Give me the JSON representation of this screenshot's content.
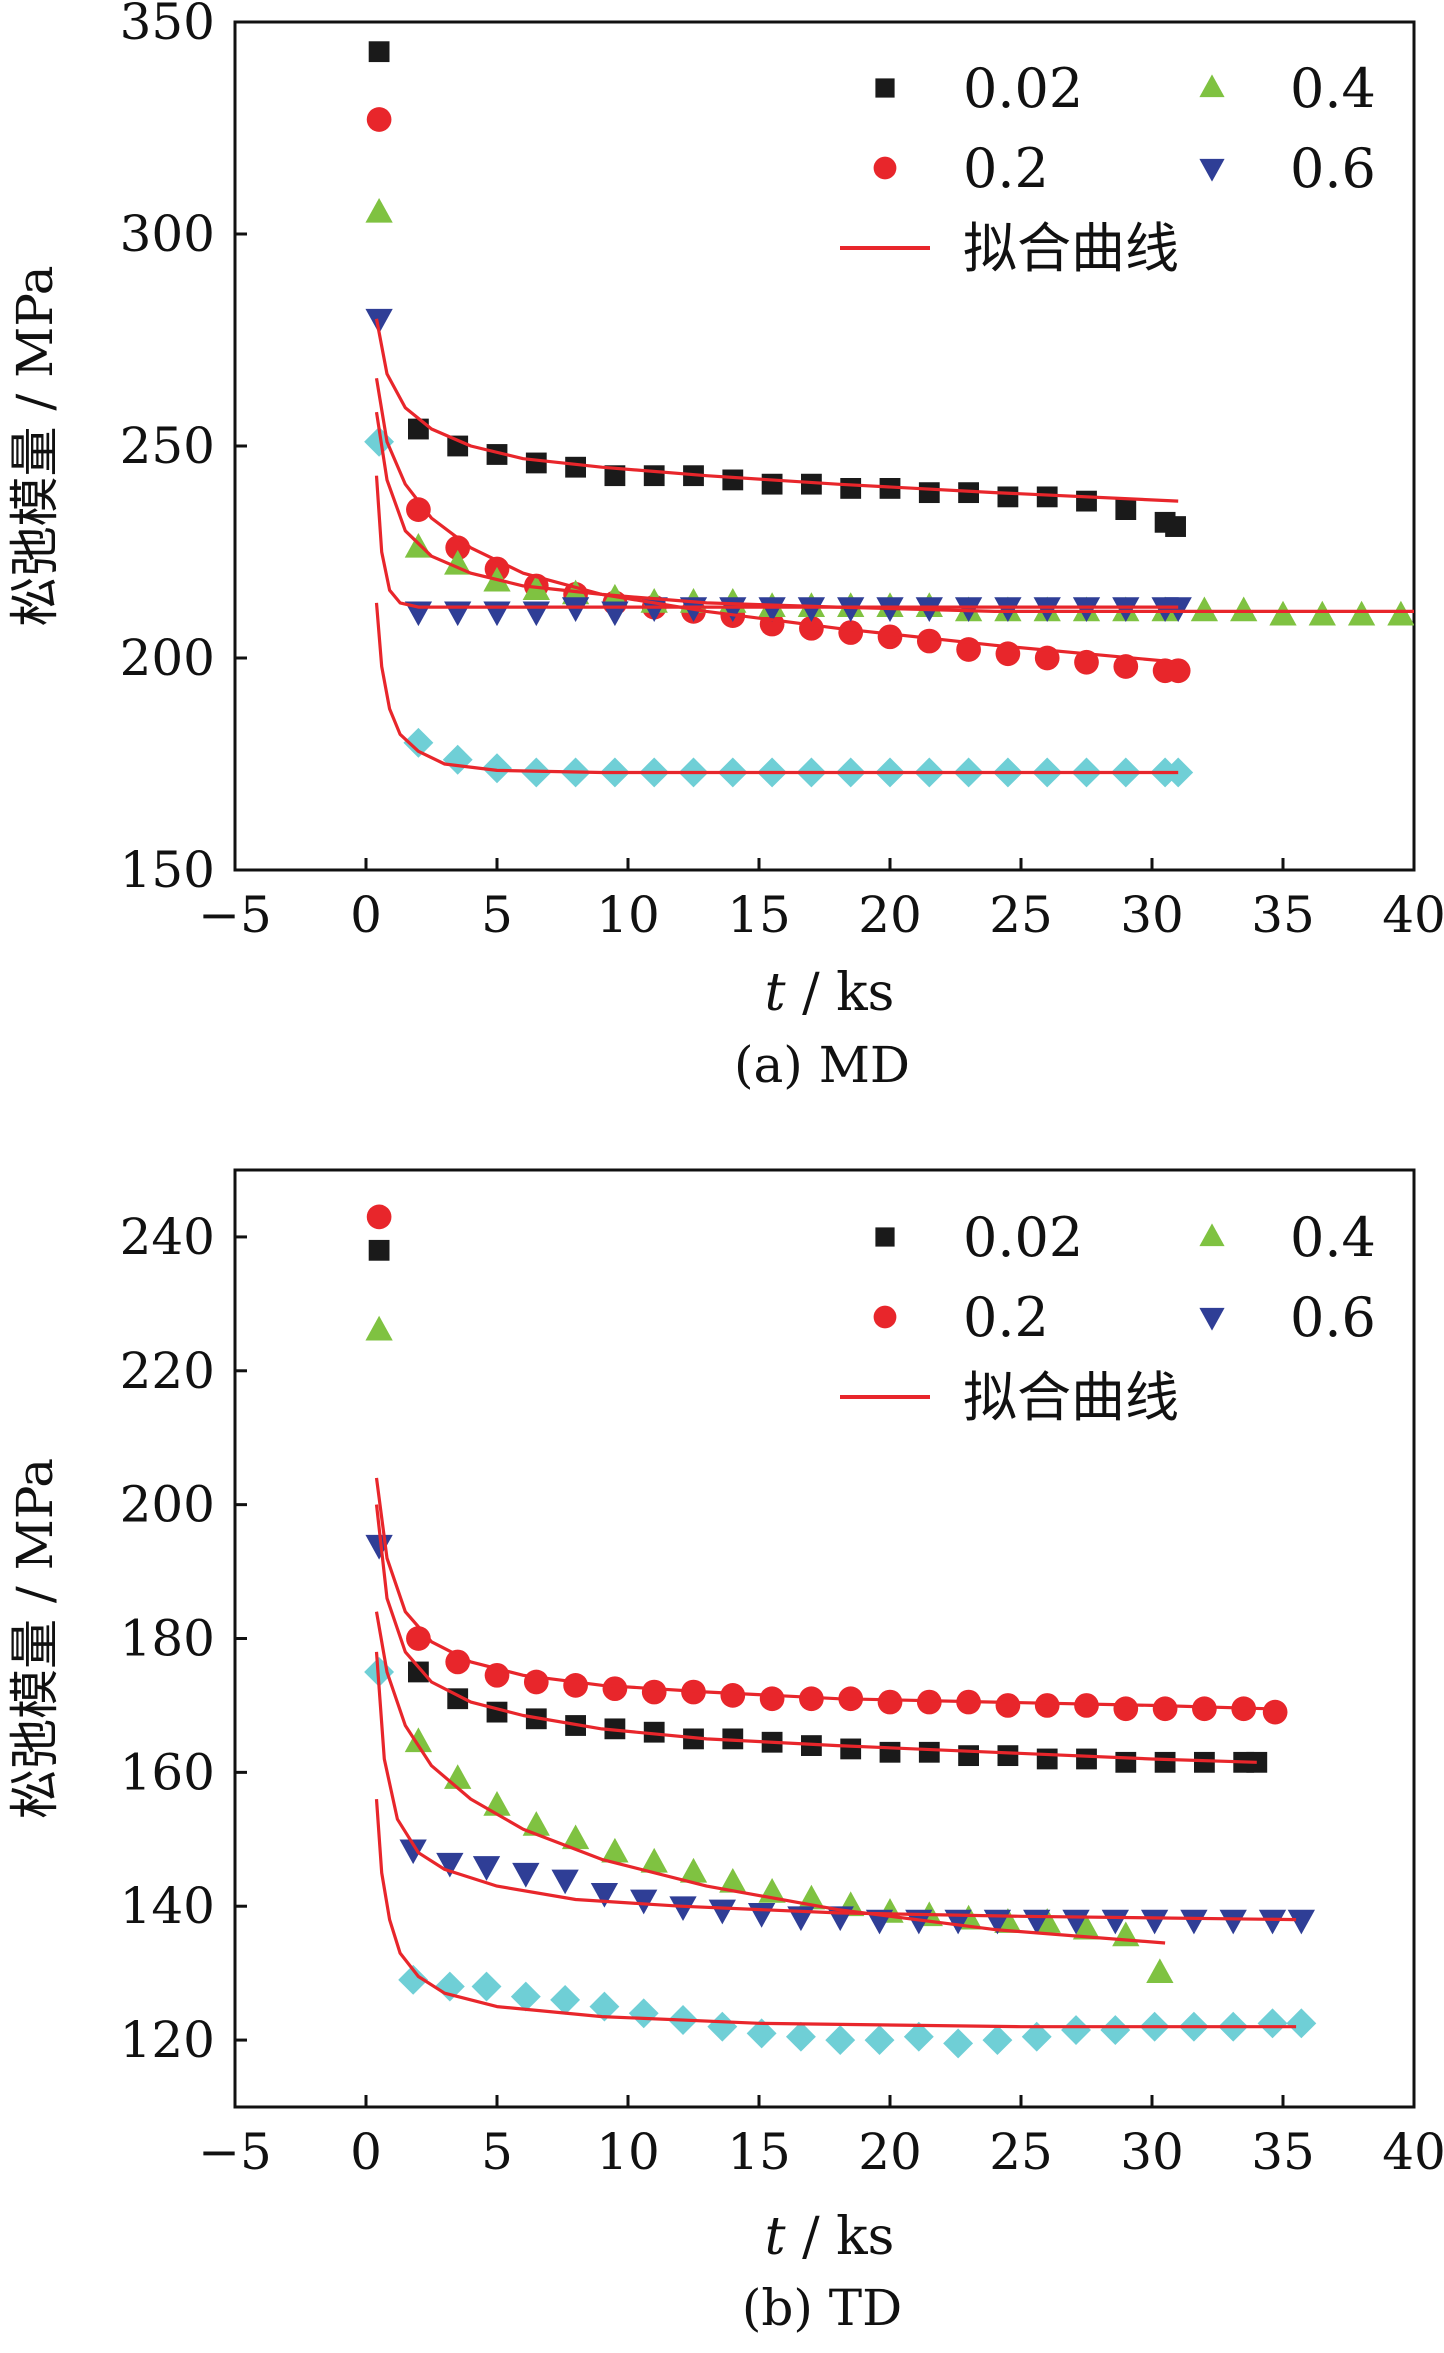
{
  "chart_data": [
    {
      "type": "scatter",
      "panel": "MD",
      "caption": "(a)  MD",
      "xlabel_italic": "t",
      "xlabel_rest": " / ks",
      "ylabel": "松弛模量 / MPa",
      "xlim": [
        -5,
        40
      ],
      "ylim": [
        150,
        350
      ],
      "xticks": [
        -5,
        0,
        5,
        10,
        15,
        20,
        25,
        30,
        35,
        40
      ],
      "xtick_labels": [
        "−5",
        "0",
        "5",
        "10",
        "15",
        "20",
        "25",
        "30",
        "35",
        "40"
      ],
      "yticks": [
        150,
        200,
        250,
        300,
        350
      ],
      "ytick_labels": [
        "150",
        "200",
        "250",
        "300",
        "350"
      ],
      "legend": [
        {
          "label": "0.02",
          "marker": "square",
          "color": "#1a1a1a"
        },
        {
          "label": "0.4",
          "marker": "triangle-up",
          "color": "#7fc241"
        },
        {
          "label": "0.2",
          "marker": "circle",
          "color": "#e8262b"
        },
        {
          "label": "0.6",
          "marker": "triangle-down",
          "color": "#2f3e96"
        },
        {
          "label": "拟合曲线",
          "marker": "line",
          "color": "#e8262b"
        }
      ],
      "series": [
        {
          "name": "0.02",
          "marker": "square",
          "color": "#1a1a1a",
          "x": [
            0.5,
            2.0,
            3.5,
            5.0,
            6.5,
            8.0,
            9.5,
            11.0,
            12.5,
            14.0,
            15.5,
            17.0,
            18.5,
            20.0,
            21.5,
            23.0,
            24.5,
            26.0,
            27.5,
            29.0,
            30.5,
            30.9
          ],
          "y": [
            343,
            254,
            250,
            248,
            246,
            245,
            243,
            243,
            243,
            242,
            241,
            241,
            240,
            240,
            239,
            239,
            238,
            238,
            237,
            235,
            232,
            231
          ]
        },
        {
          "name": "0.2",
          "marker": "circle",
          "color": "#e8262b",
          "x": [
            0.5,
            2.0,
            3.5,
            5.0,
            6.5,
            8.0,
            9.5,
            11.0,
            12.5,
            14.0,
            15.5,
            17.0,
            18.5,
            20.0,
            21.5,
            23.0,
            24.5,
            26.0,
            27.5,
            29.0,
            30.5,
            31.0
          ],
          "y": [
            327,
            235,
            226,
            221,
            217,
            215,
            213,
            212,
            211,
            210,
            208,
            207,
            206,
            205,
            204,
            202,
            201,
            200,
            199,
            198,
            197,
            197
          ]
        },
        {
          "name": "0.4",
          "marker": "triangle-up",
          "color": "#7fc241",
          "x": [
            0.5,
            2.0,
            3.5,
            5.0,
            6.5,
            8.0,
            9.5,
            11.0,
            12.5,
            14.0,
            15.5,
            17.0,
            18.5,
            20.0,
            21.5,
            23.0,
            24.5,
            26.0,
            27.5,
            29.0,
            30.5,
            32.0,
            33.5,
            35.0,
            36.5,
            38.0,
            39.5
          ],
          "y": [
            305,
            226,
            222,
            218,
            216,
            215,
            214,
            213,
            213,
            213,
            212,
            212,
            212,
            212,
            212,
            211,
            211,
            211,
            211,
            211,
            211,
            211,
            211,
            210,
            210,
            210,
            210
          ]
        },
        {
          "name": "0.6",
          "marker": "triangle-down",
          "color": "#2f3e96",
          "x": [
            0.5,
            2.0,
            3.5,
            5.0,
            6.5,
            8.0,
            9.5,
            11.0,
            12.5,
            14.0,
            15.5,
            17.0,
            18.5,
            20.0,
            21.5,
            23.0,
            24.5,
            26.0,
            27.5,
            29.0,
            30.5,
            31.0
          ],
          "y": [
            280,
            211,
            211,
            211,
            211,
            212,
            211,
            212,
            212,
            212,
            212,
            212,
            212,
            212,
            212,
            212,
            212,
            212,
            212,
            212,
            212,
            212
          ]
        },
        {
          "name": "",
          "marker": "diamond",
          "color": "#6fcfd6",
          "x": [
            0.5,
            2.0,
            3.5,
            5.0,
            6.5,
            8.0,
            9.5,
            11.0,
            12.5,
            14.0,
            15.5,
            17.0,
            18.5,
            20.0,
            21.5,
            23.0,
            24.5,
            26.0,
            27.5,
            29.0,
            30.5,
            31.0
          ],
          "y": [
            251,
            180,
            176,
            174,
            173,
            173,
            173,
            173,
            173,
            173,
            173,
            173,
            173,
            173,
            173,
            173,
            173,
            173,
            173,
            173,
            173,
            173
          ]
        }
      ],
      "fit_curves": [
        {
          "x": [
            0.4,
            0.8,
            1.5,
            2.5,
            4,
            6,
            9,
            13,
            18,
            24,
            31
          ],
          "y": [
            280,
            267,
            259,
            254,
            250,
            247,
            245,
            243,
            241,
            239,
            237
          ]
        },
        {
          "x": [
            0.4,
            0.8,
            1.5,
            2.5,
            4,
            6,
            9,
            13,
            18,
            24,
            31
          ],
          "y": [
            266,
            251,
            241,
            233,
            226,
            220,
            215,
            211,
            207,
            203,
            199
          ]
        },
        {
          "x": [
            0.4,
            0.8,
            1.5,
            2.5,
            4,
            6,
            9,
            13,
            18,
            24,
            31,
            40
          ],
          "y": [
            258,
            242,
            230,
            224,
            220,
            217,
            215,
            213,
            212,
            211,
            211,
            211
          ]
        },
        {
          "x": [
            0.4,
            0.6,
            0.9,
            1.3,
            2,
            3,
            5,
            9,
            15,
            25,
            31
          ],
          "y": [
            243,
            225,
            216,
            213,
            212,
            212,
            212,
            212,
            212,
            212,
            212
          ]
        },
        {
          "x": [
            0.4,
            0.6,
            0.9,
            1.3,
            2,
            3,
            5,
            9,
            15,
            25,
            31
          ],
          "y": [
            213,
            198,
            188,
            182,
            178,
            175,
            173.5,
            173,
            173,
            173,
            173
          ]
        }
      ]
    },
    {
      "type": "scatter",
      "panel": "TD",
      "caption": "(b)  TD",
      "xlabel_italic": "t",
      "xlabel_rest": " / ks",
      "ylabel": "松弛模量 / MPa",
      "xlim": [
        -5,
        40
      ],
      "ylim": [
        110,
        250
      ],
      "xticks": [
        -5,
        0,
        5,
        10,
        15,
        20,
        25,
        30,
        35,
        40
      ],
      "xtick_labels": [
        "−5",
        "0",
        "5",
        "10",
        "15",
        "20",
        "25",
        "30",
        "35",
        "40"
      ],
      "yticks": [
        120,
        140,
        160,
        180,
        200,
        220,
        240
      ],
      "ytick_labels": [
        "120",
        "140",
        "160",
        "180",
        "200",
        "220",
        "240"
      ],
      "legend": [
        {
          "label": "0.02",
          "marker": "square",
          "color": "#1a1a1a"
        },
        {
          "label": "0.4",
          "marker": "triangle-up",
          "color": "#7fc241"
        },
        {
          "label": "0.2",
          "marker": "circle",
          "color": "#e8262b"
        },
        {
          "label": "0.6",
          "marker": "triangle-down",
          "color": "#2f3e96"
        },
        {
          "label": "拟合曲线",
          "marker": "line",
          "color": "#e8262b"
        }
      ],
      "series": [
        {
          "name": "0.02",
          "marker": "square",
          "color": "#1a1a1a",
          "x": [
            0.5,
            2.0,
            3.5,
            5.0,
            6.5,
            8.0,
            9.5,
            11.0,
            12.5,
            14.0,
            15.5,
            17.0,
            18.5,
            20.0,
            21.5,
            23.0,
            24.5,
            26.0,
            27.5,
            29.0,
            30.5,
            32.0,
            33.5,
            34.0
          ],
          "y": [
            238,
            175,
            171,
            169,
            168,
            167,
            166.5,
            166,
            165,
            165,
            164.5,
            164,
            163.5,
            163,
            163,
            162.5,
            162.5,
            162,
            162,
            161.5,
            161.5,
            161.5,
            161.5,
            161.5
          ]
        },
        {
          "name": "0.2",
          "marker": "circle",
          "color": "#e8262b",
          "x": [
            0.5,
            2.0,
            3.5,
            5.0,
            6.5,
            8.0,
            9.5,
            11.0,
            12.5,
            14.0,
            15.5,
            17.0,
            18.5,
            20.0,
            21.5,
            23.0,
            24.5,
            26.0,
            27.5,
            29.0,
            30.5,
            32.0,
            33.5,
            34.7
          ],
          "y": [
            243,
            180,
            176.5,
            174.5,
            173.5,
            173,
            172.5,
            172,
            172,
            171.5,
            171,
            171,
            171,
            170.5,
            170.5,
            170.5,
            170,
            170,
            170,
            169.5,
            169.5,
            169.5,
            169.5,
            169
          ]
        },
        {
          "name": "0.4",
          "marker": "triangle-up",
          "color": "#7fc241",
          "x": [
            0.5,
            2.0,
            3.5,
            5.0,
            6.5,
            8.0,
            9.5,
            11.0,
            12.5,
            14.0,
            15.5,
            17.0,
            18.5,
            20.0,
            21.5,
            23.0,
            24.5,
            26.0,
            27.5,
            29.0,
            30.3
          ],
          "y": [
            226,
            164.5,
            159,
            155,
            152,
            150,
            148,
            146.5,
            145,
            143.5,
            142,
            141,
            140,
            139,
            138.5,
            138,
            137.5,
            137.5,
            136.5,
            135.5,
            130
          ]
        },
        {
          "name": "0.6",
          "marker": "triangle-down",
          "color": "#2f3e96",
          "x": [
            0.5,
            1.8,
            3.2,
            4.6,
            6.1,
            7.6,
            9.1,
            10.6,
            12.1,
            13.6,
            15.1,
            16.6,
            18.1,
            19.6,
            21.1,
            22.6,
            24.1,
            25.6,
            27.1,
            28.6,
            30.1,
            31.6,
            33.1,
            34.6,
            35.7
          ],
          "y": [
            194,
            148.5,
            146.5,
            146,
            145,
            144,
            142,
            141,
            140,
            139.5,
            139,
            138.5,
            138.5,
            138,
            138,
            138,
            138,
            138,
            138,
            138,
            138,
            138,
            138,
            138,
            138
          ]
        },
        {
          "name": "",
          "marker": "diamond",
          "color": "#6fcfd6",
          "x": [
            0.5,
            1.8,
            3.2,
            4.6,
            6.1,
            7.6,
            9.1,
            10.6,
            12.1,
            13.6,
            15.1,
            16.6,
            18.1,
            19.6,
            21.1,
            22.6,
            24.1,
            25.6,
            27.1,
            28.6,
            30.1,
            31.6,
            33.1,
            34.6,
            35.7
          ],
          "y": [
            175,
            129,
            128,
            128,
            126.5,
            126,
            125,
            124,
            123,
            122,
            121,
            120.5,
            120,
            120,
            120.5,
            119.5,
            120,
            120.5,
            121.5,
            121.5,
            122,
            122,
            122,
            122.5,
            122.5
          ]
        }
      ],
      "fit_curves": [
        {
          "x": [
            0.4,
            0.8,
            1.5,
            2.5,
            4,
            6,
            9,
            13,
            18,
            24,
            30,
            34
          ],
          "y": [
            200,
            186,
            178,
            173.5,
            170.5,
            168.5,
            166.5,
            165,
            164,
            163,
            162,
            161.5
          ]
        },
        {
          "x": [
            0.4,
            0.8,
            1.5,
            2.5,
            4,
            6,
            9,
            13,
            18,
            24,
            30,
            34.5
          ],
          "y": [
            204,
            192,
            184,
            179.5,
            176.5,
            174.5,
            173,
            172,
            171,
            170.5,
            170,
            169.5
          ]
        },
        {
          "x": [
            0.4,
            0.8,
            1.5,
            2.5,
            4,
            6,
            9,
            13,
            18,
            24,
            30.5
          ],
          "y": [
            184,
            175,
            167,
            161,
            156,
            151.5,
            147,
            143,
            139.5,
            136.5,
            134.5
          ]
        },
        {
          "x": [
            0.4,
            0.7,
            1.2,
            2,
            3,
            5,
            8,
            12,
            18,
            25,
            35.5
          ],
          "y": [
            178,
            162,
            153,
            148,
            145.5,
            143,
            141,
            140,
            139,
            138.5,
            138
          ]
        },
        {
          "x": [
            0.4,
            0.6,
            0.9,
            1.3,
            2,
            3,
            5,
            9,
            15,
            25,
            35.5
          ],
          "y": [
            156,
            145,
            138,
            133,
            129.5,
            127,
            125,
            123.5,
            122.5,
            122,
            122
          ]
        }
      ]
    }
  ]
}
